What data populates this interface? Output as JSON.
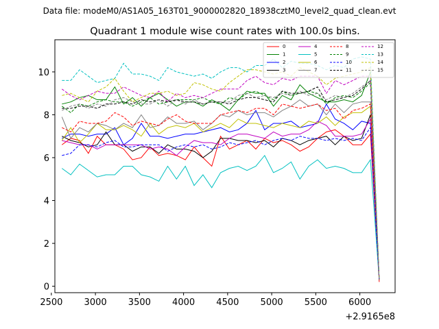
{
  "chart_data": {
    "type": "line",
    "suptitle": "Data file: modeM0/AS1A05_163T01_9000002820_18938cztM0_level2_quad_clean.evt",
    "title": "Quadrant 1 module wise count rates with 100.0s bins.",
    "xlabel": "",
    "ylabel": "",
    "x_offset_label": "+2.9165e8",
    "xlim": [
      2540,
      6400
    ],
    "ylim": [
      -0.3,
      11.5
    ],
    "xticks": [
      2500,
      3000,
      3500,
      4000,
      4500,
      5000,
      5500,
      6000
    ],
    "yticks": [
      0,
      2,
      4,
      6,
      8,
      10
    ],
    "legend_position": "top-right",
    "legend_columns": 4,
    "x": [
      2620,
      2720,
      2820,
      2920,
      3020,
      3120,
      3220,
      3320,
      3420,
      3520,
      3620,
      3720,
      3820,
      3920,
      4020,
      4120,
      4220,
      4320,
      4420,
      4520,
      4620,
      4720,
      4820,
      4920,
      5020,
      5120,
      5220,
      5320,
      5420,
      5520,
      5620,
      5720,
      5820,
      5920,
      6020,
      6120,
      6220
    ],
    "series": [
      {
        "name": "0",
        "color": "#ff0000",
        "dash": "solid",
        "values": [
          6.6,
          6.9,
          6.8,
          6.2,
          7.0,
          6.6,
          6.6,
          6.4,
          5.9,
          6.0,
          6.5,
          6.1,
          6.2,
          6.1,
          5.9,
          6.5,
          6.0,
          5.6,
          7.0,
          6.4,
          6.6,
          6.8,
          6.4,
          6.9,
          6.7,
          6.8,
          6.6,
          6.3,
          6.5,
          6.9,
          7.2,
          7.3,
          7.0,
          6.6,
          6.6,
          7.1,
          0.2
        ]
      },
      {
        "name": "1",
        "color": "#008000",
        "dash": "solid",
        "values": [
          8.5,
          8.6,
          8.8,
          8.9,
          8.7,
          8.7,
          9.3,
          8.5,
          8.8,
          8.4,
          8.8,
          9.0,
          8.7,
          8.4,
          8.6,
          8.6,
          8.4,
          8.7,
          8.5,
          8.2,
          8.7,
          9.1,
          9.0,
          9.0,
          8.4,
          8.9,
          8.7,
          9.4,
          9.0,
          8.8,
          8.6,
          8.6,
          8.7,
          8.6,
          8.9,
          10.0,
          0.3
        ]
      },
      {
        "name": "2",
        "color": "#0000ff",
        "dash": "solid",
        "values": [
          6.9,
          7.1,
          7.1,
          7.0,
          7.1,
          7.1,
          7.4,
          6.6,
          6.9,
          7.6,
          7.0,
          7.0,
          6.9,
          7.0,
          7.1,
          7.1,
          7.2,
          7.3,
          7.4,
          7.2,
          7.3,
          7.6,
          8.2,
          7.3,
          7.6,
          7.6,
          7.7,
          7.4,
          7.5,
          7.6,
          8.5,
          7.8,
          7.6,
          7.3,
          7.7,
          7.6,
          0.3
        ]
      },
      {
        "name": "3",
        "color": "#000000",
        "dash": "solid",
        "values": [
          7.0,
          6.8,
          6.7,
          6.5,
          6.6,
          7.2,
          6.6,
          6.6,
          6.3,
          6.5,
          6.5,
          6.2,
          6.6,
          6.4,
          6.4,
          6.3,
          6.0,
          6.3,
          6.9,
          6.9,
          6.8,
          6.8,
          6.7,
          6.8,
          6.5,
          6.9,
          6.8,
          6.6,
          6.8,
          6.9,
          7.0,
          6.6,
          7.0,
          6.8,
          6.9,
          8.0,
          0.3
        ]
      },
      {
        "name": "4",
        "color": "#c000c0",
        "dash": "solid",
        "values": [
          6.8,
          6.7,
          6.6,
          6.6,
          6.4,
          6.6,
          6.6,
          6.6,
          6.6,
          6.6,
          6.4,
          6.5,
          6.4,
          6.1,
          6.5,
          6.8,
          6.7,
          6.7,
          6.6,
          6.9,
          7.1,
          7.1,
          7.0,
          6.9,
          7.2,
          7.0,
          7.1,
          7.1,
          7.3,
          7.7,
          7.5,
          7.0,
          7.0,
          7.0,
          7.1,
          7.8,
          0.3
        ]
      },
      {
        "name": "5",
        "color": "#00c0c0",
        "dash": "solid",
        "values": [
          5.5,
          5.2,
          5.7,
          5.4,
          5.1,
          5.2,
          5.2,
          5.6,
          5.6,
          5.2,
          5.1,
          4.9,
          5.6,
          5.0,
          5.6,
          4.7,
          5.2,
          4.6,
          5.3,
          5.5,
          5.6,
          5.4,
          5.6,
          6.1,
          5.3,
          5.5,
          5.8,
          5.0,
          5.6,
          5.9,
          5.5,
          5.6,
          5.5,
          5.3,
          5.3,
          5.9,
          0.3
        ]
      },
      {
        "name": "6",
        "color": "#c0c000",
        "dash": "solid",
        "values": [
          6.8,
          7.4,
          6.7,
          7.1,
          7.6,
          7.3,
          7.3,
          7.5,
          7.3,
          7.0,
          7.6,
          7.1,
          7.4,
          7.5,
          7.4,
          7.6,
          7.2,
          7.4,
          7.6,
          7.4,
          7.8,
          7.6,
          7.6,
          7.5,
          7.4,
          7.6,
          7.5,
          7.4,
          7.7,
          7.6,
          7.9,
          7.5,
          7.9,
          8.1,
          8.1,
          8.4,
          0.3
        ]
      },
      {
        "name": "7",
        "color": "#808080",
        "dash": "solid",
        "values": [
          7.9,
          6.9,
          7.4,
          7.2,
          7.6,
          7.5,
          7.3,
          7.6,
          7.4,
          8.0,
          7.4,
          7.5,
          7.9,
          7.6,
          7.6,
          7.7,
          7.3,
          7.6,
          8.0,
          7.9,
          8.2,
          8.0,
          8.1,
          8.1,
          7.9,
          8.2,
          8.4,
          8.7,
          8.4,
          8.5,
          8.0,
          8.5,
          8.1,
          8.5,
          8.6,
          8.6,
          0.3
        ]
      },
      {
        "name": "8",
        "color": "#ff0000",
        "dash": "dashed",
        "values": [
          7.4,
          7.2,
          7.7,
          7.6,
          7.6,
          7.7,
          8.1,
          7.9,
          7.5,
          7.7,
          7.6,
          7.5,
          7.8,
          8.0,
          7.7,
          7.6,
          7.6,
          7.6,
          8.0,
          8.1,
          8.2,
          8.1,
          8.3,
          8.3,
          8.0,
          8.5,
          8.4,
          8.3,
          8.4,
          8.5,
          8.2,
          8.3,
          7.8,
          8.2,
          8.3,
          8.5,
          0.3
        ]
      },
      {
        "name": "9",
        "color": "#008000",
        "dash": "dashed",
        "values": [
          8.4,
          8.1,
          8.5,
          8.4,
          8.6,
          8.7,
          8.6,
          8.6,
          8.4,
          8.6,
          8.8,
          8.5,
          8.6,
          8.7,
          8.7,
          8.7,
          8.8,
          8.6,
          8.5,
          8.8,
          8.7,
          9.0,
          9.1,
          8.9,
          8.7,
          9.1,
          8.9,
          9.0,
          9.1,
          9.0,
          8.5,
          8.8,
          8.9,
          8.8,
          9.1,
          9.5,
          0.3
        ]
      },
      {
        "name": "10",
        "color": "#0000ff",
        "dash": "dashed",
        "values": [
          6.1,
          6.2,
          6.6,
          6.6,
          6.5,
          6.7,
          6.8,
          6.5,
          6.5,
          6.6,
          6.6,
          6.6,
          6.3,
          6.5,
          6.6,
          6.5,
          6.6,
          6.4,
          6.5,
          6.7,
          6.6,
          6.7,
          6.8,
          6.6,
          6.8,
          6.9,
          6.8,
          7.0,
          6.9,
          6.9,
          6.8,
          6.9,
          6.8,
          6.9,
          6.8,
          7.4,
          0.3
        ]
      },
      {
        "name": "11",
        "color": "#000000",
        "dash": "dashed",
        "values": [
          8.3,
          8.3,
          8.4,
          8.4,
          8.3,
          8.5,
          8.5,
          8.6,
          8.5,
          8.7,
          8.6,
          8.7,
          8.6,
          8.7,
          8.6,
          8.6,
          8.5,
          8.6,
          8.6,
          8.5,
          8.7,
          8.8,
          8.8,
          8.7,
          8.6,
          9.1,
          9.0,
          9.0,
          9.1,
          9.3,
          8.6,
          8.7,
          8.8,
          8.9,
          9.2,
          9.6,
          0.3
        ]
      },
      {
        "name": "12",
        "color": "#c000c0",
        "dash": "dashed",
        "values": [
          9.2,
          8.9,
          8.7,
          8.9,
          9.1,
          9.0,
          9.0,
          9.3,
          9.1,
          8.9,
          8.8,
          9.1,
          8.6,
          9.0,
          8.8,
          8.9,
          8.8,
          9.0,
          9.2,
          9.2,
          9.2,
          9.6,
          9.8,
          9.5,
          9.4,
          9.7,
          9.6,
          9.8,
          9.8,
          9.8,
          9.0,
          9.6,
          9.4,
          9.6,
          9.8,
          9.8,
          0.3
        ]
      },
      {
        "name": "13",
        "color": "#00c0c0",
        "dash": "dashed",
        "values": [
          9.6,
          9.6,
          10.1,
          9.8,
          9.5,
          9.6,
          9.7,
          10.4,
          9.9,
          9.9,
          9.8,
          9.6,
          10.2,
          10.0,
          9.9,
          9.8,
          9.9,
          9.7,
          10.0,
          10.2,
          10.2,
          10.0,
          10.3,
          10.3,
          10.6,
          10.2,
          10.5,
          10.4,
          10.4,
          10.3,
          10.1,
          10.3,
          10.2,
          10.6,
          10.7,
          10.6,
          0.3
        ]
      },
      {
        "name": "14",
        "color": "#c0c000",
        "dash": "dashed",
        "values": [
          8.9,
          9.0,
          8.8,
          8.6,
          9.1,
          9.3,
          9.7,
          9.1,
          8.6,
          8.8,
          9.0,
          9.0,
          9.1,
          8.9,
          9.0,
          9.5,
          9.4,
          9.2,
          9.1,
          9.5,
          9.8,
          10.1,
          10.1,
          10.0,
          9.9,
          10.0,
          9.8,
          10.2,
          10.0,
          9.8,
          9.4,
          9.7,
          9.8,
          9.9,
          10.0,
          10.2,
          0.3
        ]
      },
      {
        "name": "15",
        "color": "#808080",
        "dash": "dashed",
        "values": [
          8.2,
          8.4,
          8.5,
          8.3,
          8.5,
          8.4,
          8.7,
          8.8,
          8.6,
          8.5,
          8.5,
          8.7,
          8.4,
          8.7,
          8.5,
          8.7,
          8.5,
          8.6,
          8.6,
          8.6,
          8.9,
          9.0,
          8.8,
          8.9,
          8.8,
          9.0,
          8.9,
          9.1,
          8.9,
          9.0,
          8.7,
          8.9,
          8.8,
          9.0,
          9.3,
          9.6,
          0.3
        ]
      }
    ]
  }
}
